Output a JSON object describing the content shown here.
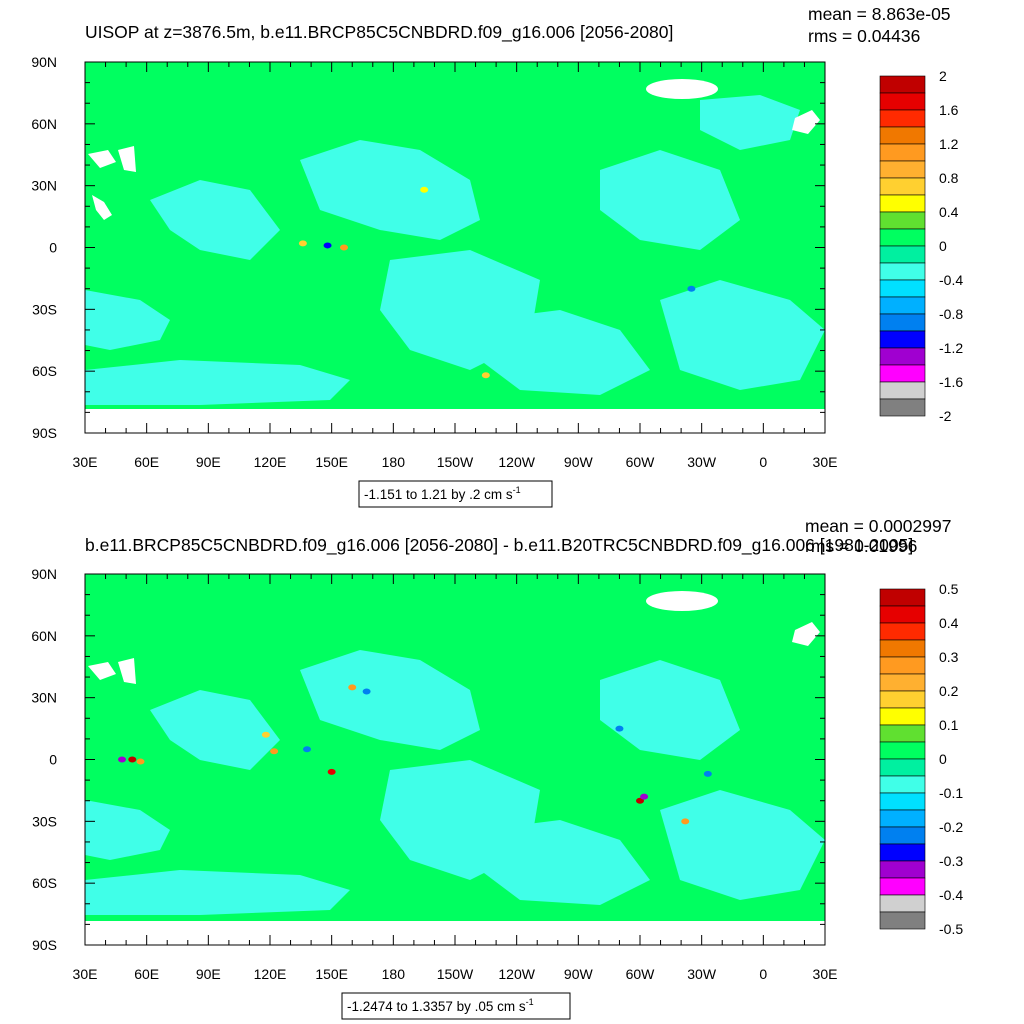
{
  "chart_data": [
    {
      "type": "heatmap",
      "title": "UISOP at z=3876.5m, b.e11.BRCP85C5CNBDRD.f09_g16.006 [2056-2080]",
      "stats": {
        "mean": "mean = 8.863e-05",
        "rms": "rms = 0.04436"
      },
      "range_label": "-1.151 to 1.21 by .2 cm s",
      "range_sup": "-1",
      "x_ticks": [
        "30E",
        "60E",
        "90E",
        "120E",
        "150E",
        "180",
        "150W",
        "120W",
        "90W",
        "60W",
        "30W",
        "0",
        "30E"
      ],
      "y_ticks": [
        "90N",
        "60N",
        "30N",
        "0",
        "30S",
        "60S",
        "90S"
      ],
      "colorbar": {
        "labels": [
          "2",
          "1.6",
          "1.2",
          "0.8",
          "0.4",
          "0",
          "-0.4",
          "-0.8",
          "-1.2",
          "-1.6",
          "-2"
        ],
        "colors": [
          "#c00000",
          "#e60000",
          "#ff2a00",
          "#f07800",
          "#ff9a20",
          "#ffb030",
          "#ffd030",
          "#ffff00",
          "#60e030",
          "#00ff60",
          "#00f0a0",
          "#40ffe8",
          "#00e0ff",
          "#00b0ff",
          "#0080f0",
          "#0000ff",
          "#a000d0",
          "#ff00ff",
          "#d0d0d0",
          "#808080"
        ]
      },
      "anomalies": [
        {
          "lon": 136,
          "lat": 2,
          "value": 0.8
        },
        {
          "lon": 148,
          "lat": 1,
          "value": -1.0
        },
        {
          "lon": 156,
          "lat": 0,
          "value": 1.2
        },
        {
          "lon": 195,
          "lat": 28,
          "value": 0.6
        },
        {
          "lon": 325,
          "lat": -20,
          "value": -0.8
        },
        {
          "lon": 225,
          "lat": -62,
          "value": 0.8
        }
      ]
    },
    {
      "type": "heatmap",
      "title": "b.e11.BRCP85C5CNBDRD.f09_g16.006 [2056-2080] - b.e11.B20TRC5CNBDRD.f09_g16.006 [1981-2005]",
      "stats": {
        "mean": "mean = 0.0002997",
        "rms": "rms = 0.01996"
      },
      "range_label": "-1.2474 to 1.3357 by .05 cm s",
      "range_sup": "-1",
      "x_ticks": [
        "30E",
        "60E",
        "90E",
        "120E",
        "150E",
        "180",
        "150W",
        "120W",
        "90W",
        "60W",
        "30W",
        "0",
        "30E"
      ],
      "y_ticks": [
        "90N",
        "60N",
        "30N",
        "0",
        "30S",
        "60S",
        "90S"
      ],
      "colorbar": {
        "labels": [
          "0.5",
          "0.4",
          "0.3",
          "0.2",
          "0.1",
          "0",
          "-0.1",
          "-0.2",
          "-0.3",
          "-0.4",
          "-0.5"
        ],
        "colors": [
          "#c00000",
          "#e60000",
          "#ff2a00",
          "#f07800",
          "#ff9a20",
          "#ffb030",
          "#ffd030",
          "#ffff00",
          "#60e030",
          "#00ff60",
          "#00f0a0",
          "#40ffe8",
          "#00e0ff",
          "#00b0ff",
          "#0080f0",
          "#0000ff",
          "#a000d0",
          "#ff00ff",
          "#d0d0d0",
          "#808080"
        ]
      },
      "anomalies": [
        {
          "lon": 53,
          "lat": 0,
          "value": 0.5
        },
        {
          "lon": 57,
          "lat": -1,
          "value": 0.3
        },
        {
          "lon": 48,
          "lat": 0,
          "value": -0.3
        },
        {
          "lon": 118,
          "lat": 12,
          "value": 0.2
        },
        {
          "lon": 122,
          "lat": 4,
          "value": 0.3
        },
        {
          "lon": 138,
          "lat": 5,
          "value": -0.2
        },
        {
          "lon": 150,
          "lat": -6,
          "value": 0.4
        },
        {
          "lon": 160,
          "lat": 35,
          "value": 0.3
        },
        {
          "lon": 167,
          "lat": 33,
          "value": -0.2
        },
        {
          "lon": 300,
          "lat": -20,
          "value": 0.5
        },
        {
          "lon": 302,
          "lat": -18,
          "value": -0.3
        },
        {
          "lon": 290,
          "lat": 15,
          "value": -0.2
        },
        {
          "lon": 322,
          "lat": -30,
          "value": 0.3
        },
        {
          "lon": 333,
          "lat": -7,
          "value": -0.2
        }
      ]
    }
  ]
}
